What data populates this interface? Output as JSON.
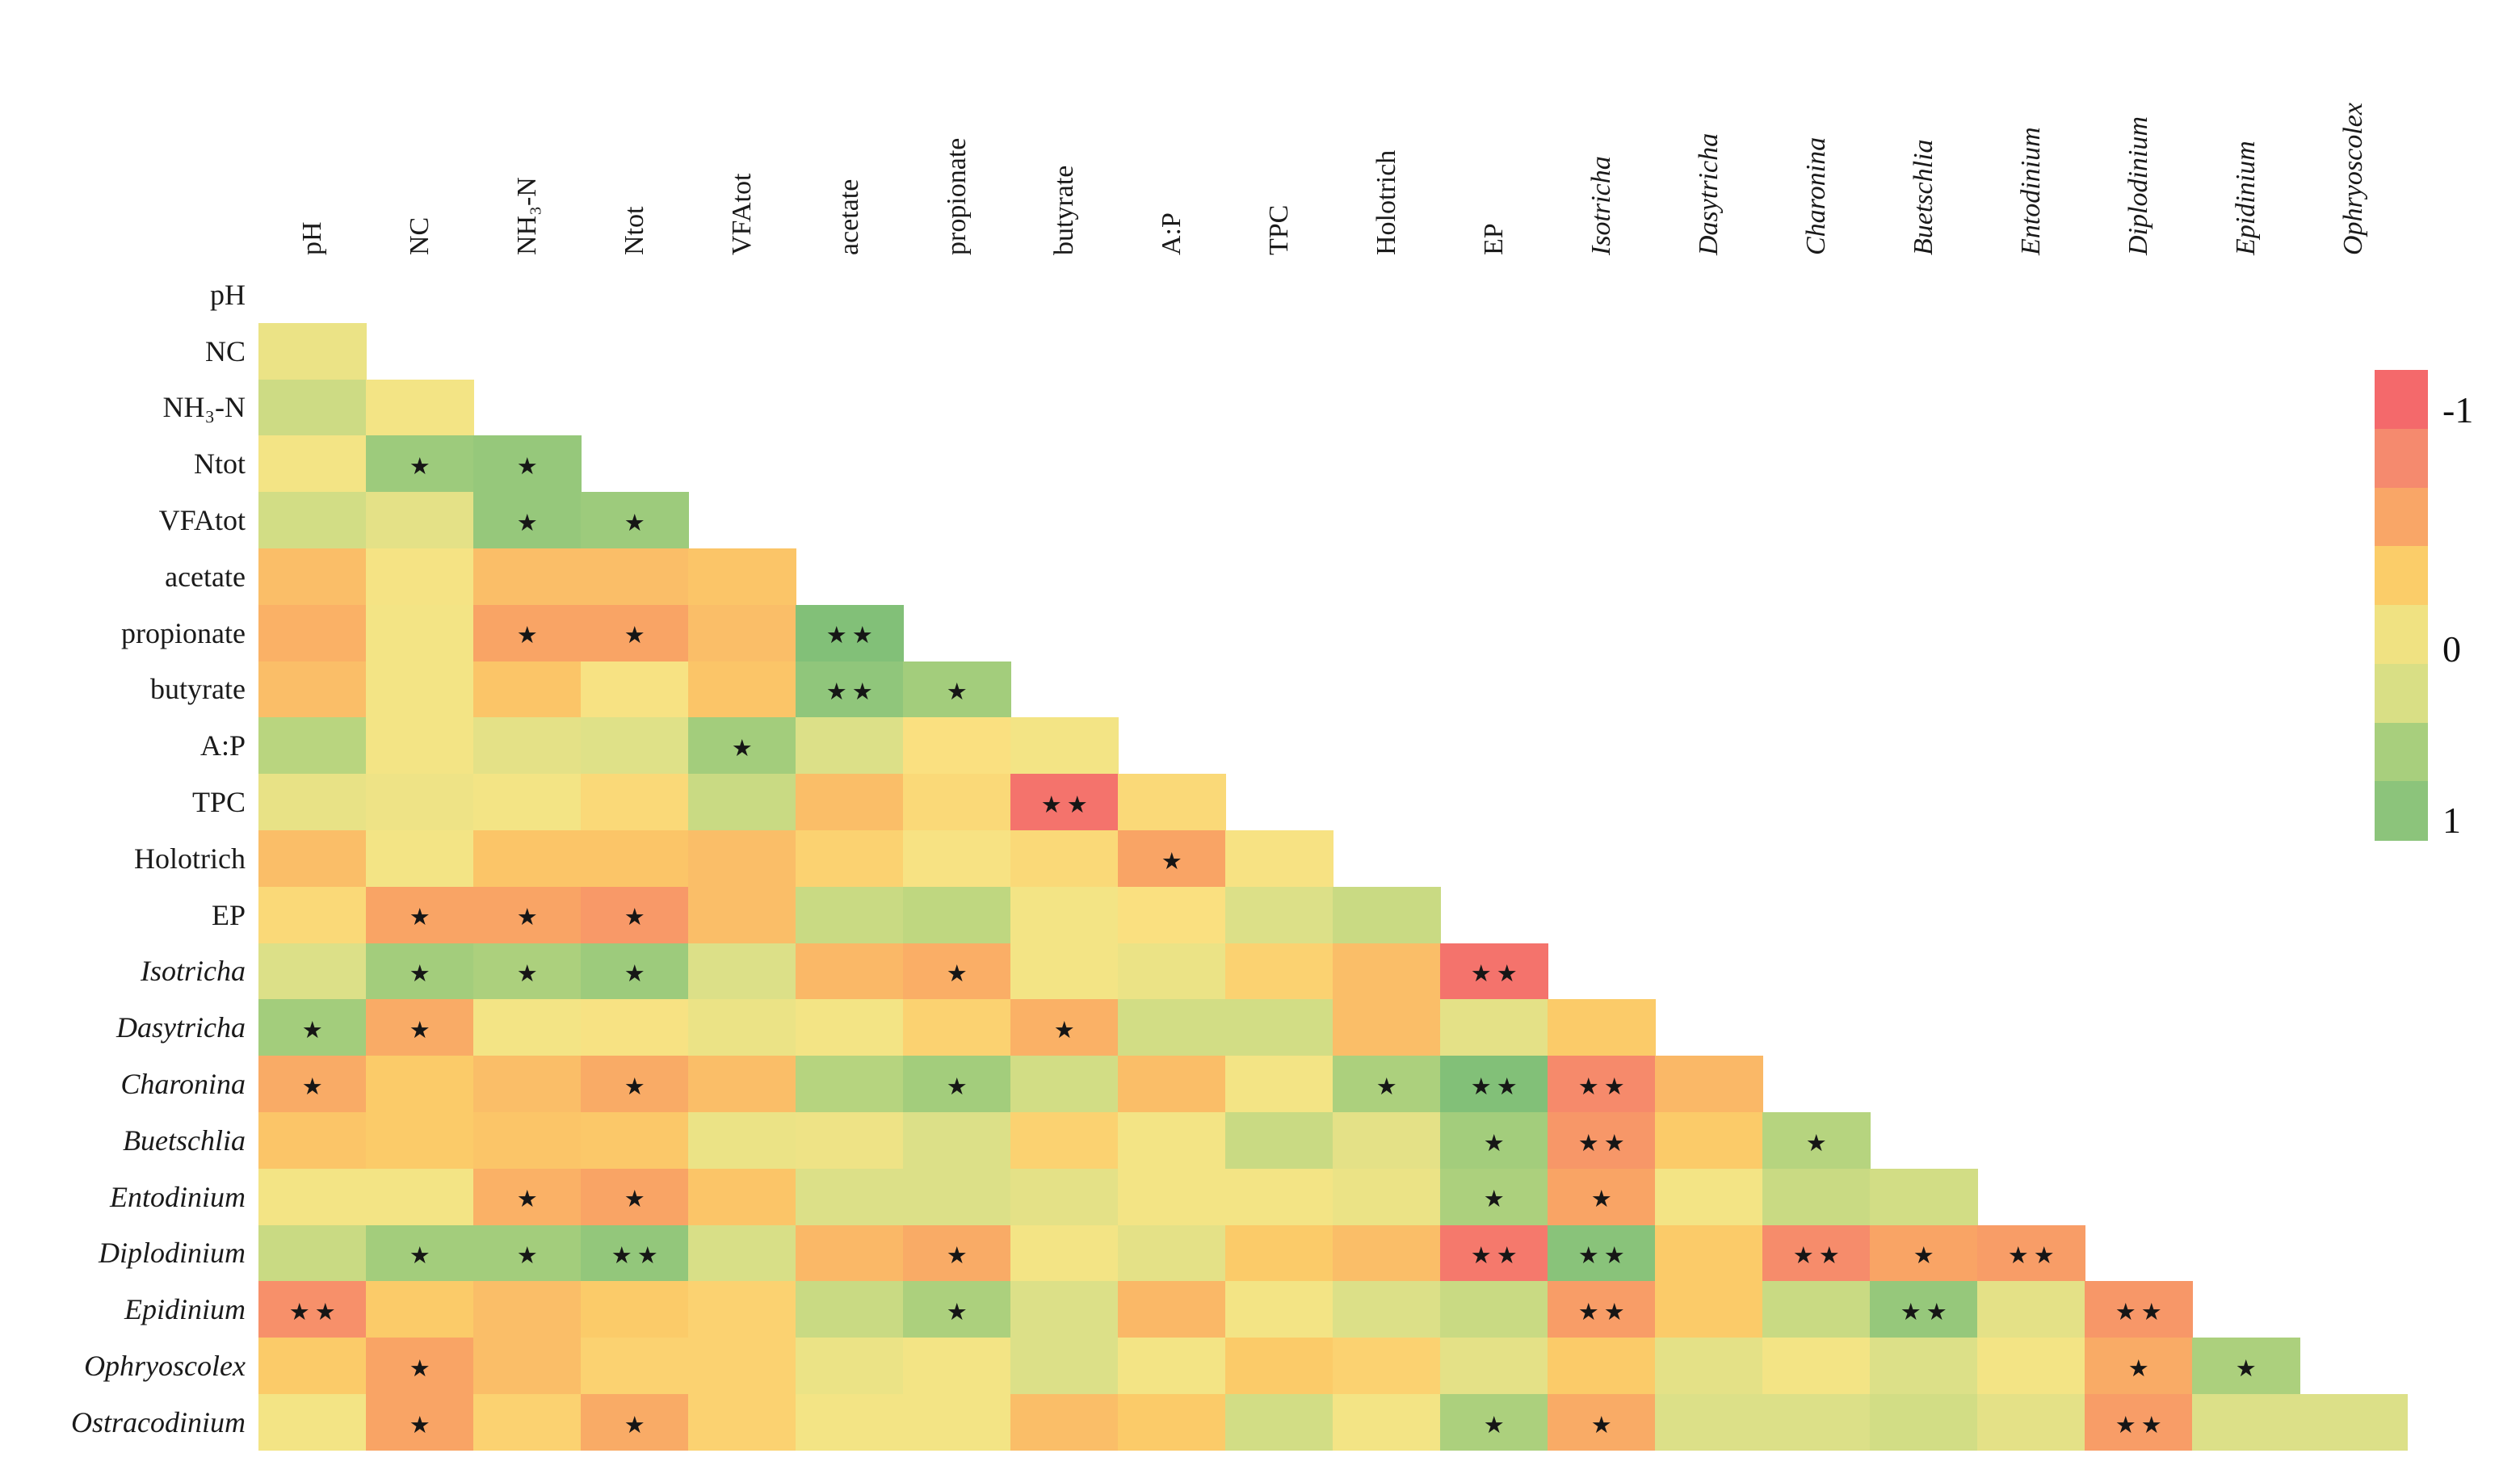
{
  "chart_data": {
    "type": "heatmap",
    "title": "",
    "description": "Lower-triangular Pearson correlation heatmap between rumen fermentation parameters and protozoa genera; red = -1, yellow = 0, green = 1; * and ** mark significant correlations",
    "value_range": [
      -1,
      1
    ],
    "columns": [
      "pH",
      "NC",
      "NH₃-N",
      "Ntot",
      "VFAtot",
      "acetate",
      "propionate",
      "butyrate",
      "A:P",
      "TPC",
      "Holotrich",
      "EP",
      "Isotricha",
      "Dasytricha",
      "Charonina",
      "Buetschlia",
      "Entodinium",
      "Diplodinium",
      "Epidinium",
      "Ophryoscolex"
    ],
    "columns_italic_from": 12,
    "rows_italic_from": 12,
    "rows": [
      {
        "name": "pH",
        "values": [],
        "stars": []
      },
      {
        "name": "NC",
        "values": [
          0.1
        ],
        "stars": [
          ""
        ]
      },
      {
        "name": "NH₃-N",
        "values": [
          0.28,
          0.05
        ],
        "stars": [
          "",
          ""
        ]
      },
      {
        "name": "Ntot",
        "values": [
          0.05,
          0.55,
          0.6
        ],
        "stars": [
          "",
          "*",
          "*"
        ]
      },
      {
        "name": "VFAtot",
        "values": [
          0.25,
          0.15,
          0.6,
          0.55
        ],
        "stars": [
          "",
          "",
          "*",
          "*"
        ]
      },
      {
        "name": "acetate",
        "values": [
          -0.3,
          0.02,
          -0.3,
          -0.3,
          -0.25
        ],
        "stars": [
          "",
          "",
          "",
          "",
          ""
        ]
      },
      {
        "name": "propionate",
        "values": [
          -0.4,
          0.05,
          -0.5,
          -0.5,
          -0.3,
          0.78
        ],
        "stars": [
          "",
          "",
          "*",
          "*",
          "",
          "**"
        ]
      },
      {
        "name": "butyrate",
        "values": [
          -0.3,
          0.05,
          -0.25,
          0.0,
          -0.25,
          0.65,
          0.5
        ],
        "stars": [
          "",
          "",
          "",
          "",
          "",
          "**",
          "*"
        ]
      },
      {
        "name": "A:P",
        "values": [
          0.38,
          0.05,
          0.15,
          0.18,
          0.5,
          0.2,
          -0.05,
          0.05
        ],
        "stars": [
          "",
          "",
          "",
          "",
          "*",
          "",
          "",
          ""
        ]
      },
      {
        "name": "TPC",
        "values": [
          0.12,
          0.08,
          0.05,
          -0.1,
          0.3,
          -0.3,
          -0.1,
          -0.9,
          -0.1
        ],
        "stars": [
          "",
          "",
          "",
          "",
          "",
          "",
          "",
          "**",
          ""
        ]
      },
      {
        "name": "Holotrich",
        "values": [
          -0.3,
          0.05,
          -0.25,
          -0.25,
          -0.3,
          -0.15,
          0.0,
          -0.1,
          -0.5,
          0.0
        ],
        "stars": [
          "",
          "",
          "",
          "",
          "",
          "",
          "",
          "",
          "*",
          ""
        ]
      },
      {
        "name": "EP",
        "values": [
          -0.1,
          -0.5,
          -0.5,
          -0.58,
          -0.3,
          0.3,
          0.35,
          0.05,
          -0.05,
          0.2,
          0.3
        ],
        "stars": [
          "",
          "*",
          "*",
          "*",
          "",
          "",
          "",
          "",
          "",
          "",
          ""
        ]
      },
      {
        "name": "Isotricha",
        "values": [
          0.2,
          0.5,
          0.45,
          0.55,
          0.2,
          -0.35,
          -0.42,
          0.05,
          0.1,
          -0.15,
          -0.3,
          -0.9
        ],
        "stars": [
          "",
          "*",
          "*",
          "*",
          "",
          "",
          "*",
          "",
          "",
          "",
          "",
          "**"
        ]
      },
      {
        "name": "Dasytricha",
        "values": [
          0.5,
          -0.45,
          0.05,
          0.0,
          0.1,
          0.05,
          -0.15,
          -0.4,
          0.25,
          0.25,
          -0.3,
          0.15,
          -0.2
        ],
        "stars": [
          "*",
          "*",
          "",
          "",
          "",
          "",
          "",
          "*",
          "",
          "",
          "",
          "",
          ""
        ]
      },
      {
        "name": "Charonina",
        "values": [
          -0.45,
          -0.2,
          -0.3,
          -0.45,
          -0.3,
          0.4,
          0.5,
          0.25,
          -0.3,
          0.05,
          0.45,
          0.78,
          -0.7,
          -0.35
        ],
        "stars": [
          "*",
          "",
          "",
          "*",
          "",
          "",
          "*",
          "",
          "",
          "",
          "*",
          "**",
          "**",
          ""
        ]
      },
      {
        "name": "Buetschlia",
        "values": [
          -0.25,
          -0.2,
          -0.25,
          -0.22,
          0.1,
          0.08,
          0.2,
          -0.15,
          0.05,
          0.3,
          0.15,
          0.5,
          -0.6,
          -0.2,
          0.4
        ],
        "stars": [
          "",
          "",
          "",
          "",
          "",
          "",
          "",
          "",
          "",
          "",
          "",
          "*",
          "**",
          "",
          "*"
        ]
      },
      {
        "name": "Entodinium",
        "values": [
          0.05,
          0.05,
          -0.4,
          -0.5,
          -0.25,
          0.2,
          0.2,
          0.15,
          0.05,
          0.05,
          0.1,
          0.45,
          -0.5,
          0.05,
          0.3,
          0.25
        ],
        "stars": [
          "",
          "",
          "*",
          "*",
          "",
          "",
          "",
          "",
          "",
          "",
          "",
          "*",
          "*",
          "",
          "",
          ""
        ]
      },
      {
        "name": "Diplodinium",
        "values": [
          0.3,
          0.5,
          0.5,
          0.62,
          0.22,
          -0.35,
          -0.45,
          0.05,
          0.15,
          -0.2,
          -0.3,
          -0.85,
          0.7,
          -0.2,
          -0.68,
          -0.5,
          -0.55
        ],
        "stars": [
          "",
          "*",
          "*",
          "**",
          "",
          "",
          "*",
          "",
          "",
          "",
          "",
          "**",
          "**",
          "",
          "**",
          "*",
          "**"
        ]
      },
      {
        "name": "Epidinium",
        "values": [
          -0.65,
          -0.2,
          -0.3,
          -0.2,
          -0.15,
          0.3,
          0.45,
          0.2,
          -0.35,
          0.05,
          0.2,
          0.3,
          -0.55,
          -0.2,
          0.3,
          0.6,
          0.15,
          -0.6
        ],
        "stars": [
          "**",
          "",
          "",
          "",
          "",
          "",
          "*",
          "",
          "",
          "",
          "",
          "",
          "**",
          "",
          "",
          "**",
          "",
          "**"
        ]
      },
      {
        "name": "Ophryoscolex",
        "values": [
          -0.2,
          -0.5,
          -0.3,
          -0.15,
          -0.15,
          0.1,
          0.05,
          0.2,
          0.05,
          -0.2,
          -0.15,
          0.15,
          -0.2,
          0.15,
          0.05,
          0.2,
          0.05,
          -0.45,
          0.45
        ],
        "stars": [
          "",
          "*",
          "",
          "",
          "",
          "",
          "",
          "",
          "",
          "",
          "",
          "",
          "",
          "",
          "",
          "",
          "",
          "*",
          "*"
        ]
      },
      {
        "name": "Ostracodinium",
        "values": [
          0.05,
          -0.5,
          -0.15,
          -0.45,
          -0.15,
          0.05,
          0.05,
          -0.3,
          -0.2,
          0.25,
          0.05,
          0.45,
          -0.45,
          0.2,
          0.2,
          0.25,
          0.15,
          -0.55,
          0.2,
          0.2
        ],
        "stars": [
          "",
          "*",
          "",
          "*",
          "",
          "",
          "",
          "",
          "",
          "",
          "",
          "*",
          "*",
          "",
          "",
          "",
          "",
          "**",
          "",
          ""
        ]
      }
    ],
    "star_symbol_single": "★",
    "star_symbol_double": "★★",
    "legend": {
      "position": "right",
      "tick_labels": [
        "-1",
        "0",
        "1"
      ],
      "block_colors": [
        "#F4696B",
        "#F58A6E",
        "#F9A667",
        "#FBCD69",
        "#F0E282",
        "#D9DF85",
        "#A8CF7D",
        "#8CC47B"
      ]
    },
    "colormap_stops": [
      [
        -1.0,
        "#F4696B"
      ],
      [
        -0.75,
        "#F5836D"
      ],
      [
        -0.5,
        "#F9A465"
      ],
      [
        -0.2,
        "#FBCB69"
      ],
      [
        -0.05,
        "#FAE080"
      ],
      [
        0.05,
        "#F3E485"
      ],
      [
        0.2,
        "#DCE088"
      ],
      [
        0.35,
        "#BFD780"
      ],
      [
        0.5,
        "#A3CD7C"
      ],
      [
        0.7,
        "#89C37A"
      ],
      [
        1.0,
        "#6FB873"
      ]
    ]
  }
}
